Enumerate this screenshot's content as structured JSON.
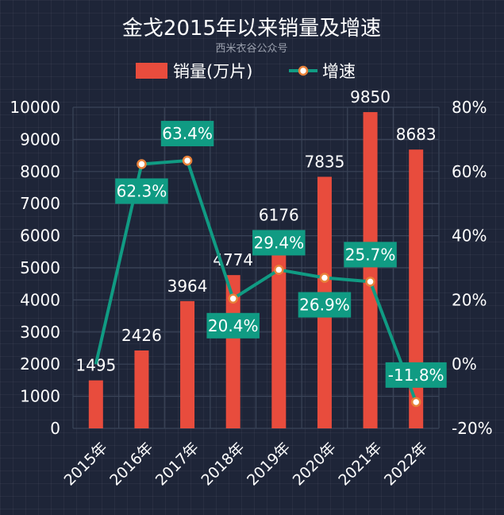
{
  "chart_data": {
    "type": "bar",
    "title": "金戈2015年以来销量及增速",
    "subtitle": "西米衣谷公众号",
    "categories": [
      "2015年",
      "2016年",
      "2017年",
      "2018年",
      "2019年",
      "2020年",
      "2021年",
      "2022年"
    ],
    "series": [
      {
        "name": "销量(万片)",
        "type": "bar",
        "axis": "left",
        "color": "#e84c3d",
        "values": [
          1495,
          2426,
          3964,
          4774,
          6176,
          7835,
          9850,
          8683
        ],
        "labels": [
          "1495",
          "2426",
          "3964",
          "4774",
          "6176",
          "7835",
          "9850",
          "8683"
        ]
      },
      {
        "name": "增速",
        "type": "line",
        "axis": "right",
        "color": "#109b83",
        "values": [
          null,
          62.3,
          63.4,
          20.4,
          29.4,
          26.9,
          25.7,
          -11.8
        ],
        "labels": [
          "",
          "62.3%",
          "63.4%",
          "20.4%",
          "29.4%",
          "26.9%",
          "25.7%",
          "-11.8%"
        ],
        "label_side": [
          "",
          "below",
          "above",
          "below",
          "above",
          "below",
          "above",
          "above"
        ]
      }
    ],
    "y_left": {
      "min": 0,
      "max": 10000,
      "ticks": [
        "0",
        "1000",
        "2000",
        "3000",
        "4000",
        "5000",
        "6000",
        "7000",
        "8000",
        "9000",
        "10000"
      ]
    },
    "y_right": {
      "min": -20,
      "max": 80,
      "ticks": [
        "-20%",
        "0%",
        "20%",
        "40%",
        "60%",
        "80%"
      ]
    },
    "legend_position": "top-center",
    "grid": true
  }
}
